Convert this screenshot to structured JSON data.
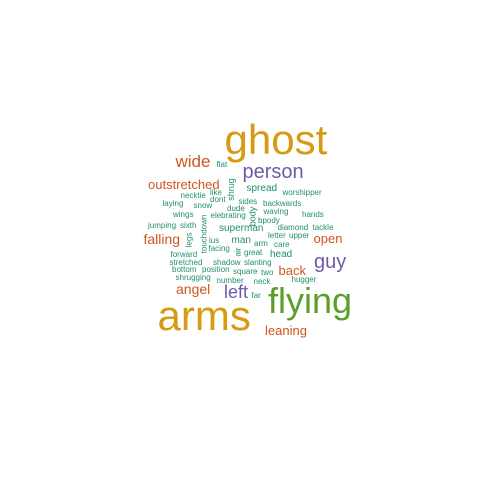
{
  "colors": {
    "orange": "#d79a12",
    "green": "#5a9e2c",
    "purple": "#6f5aaa",
    "red": "#d15520",
    "teal": "#21906b"
  },
  "words": [
    {
      "text": "ghost",
      "color": "orange",
      "rot": 0
    },
    {
      "text": "arms",
      "color": "orange",
      "rot": 0
    },
    {
      "text": "flying",
      "color": "green",
      "rot": 0
    },
    {
      "text": "person",
      "color": "purple",
      "rot": 0
    },
    {
      "text": "guy",
      "color": "purple",
      "rot": 0
    },
    {
      "text": "left",
      "color": "purple",
      "rot": 0
    },
    {
      "text": "wide",
      "color": "red",
      "rot": 0
    },
    {
      "text": "outstretched",
      "color": "red",
      "rot": 0
    },
    {
      "text": "falling",
      "color": "red",
      "rot": 0
    },
    {
      "text": "angel",
      "color": "red",
      "rot": 0
    },
    {
      "text": "back",
      "color": "red",
      "rot": 0
    },
    {
      "text": "open",
      "color": "red",
      "rot": 0
    },
    {
      "text": "leaning",
      "color": "red",
      "rot": 0
    },
    {
      "text": "spread",
      "color": "teal",
      "rot": 0
    },
    {
      "text": "superman",
      "color": "teal",
      "rot": 0
    },
    {
      "text": "man",
      "color": "teal",
      "rot": 0
    },
    {
      "text": "head",
      "color": "teal",
      "rot": 0
    },
    {
      "text": "flat",
      "color": "teal",
      "rot": 0
    },
    {
      "text": "like",
      "color": "teal",
      "rot": 0
    },
    {
      "text": "dont",
      "color": "teal",
      "rot": 0
    },
    {
      "text": "shrug",
      "color": "teal",
      "rot": 90
    },
    {
      "text": "necktie",
      "color": "teal",
      "rot": 0
    },
    {
      "text": "sides",
      "color": "teal",
      "rot": 0
    },
    {
      "text": "worshipper",
      "color": "teal",
      "rot": 0
    },
    {
      "text": "laying",
      "color": "teal",
      "rot": 0
    },
    {
      "text": "snow",
      "color": "teal",
      "rot": 0
    },
    {
      "text": "dude",
      "color": "teal",
      "rot": 0
    },
    {
      "text": "backwards",
      "color": "teal",
      "rot": 0
    },
    {
      "text": "wings",
      "color": "teal",
      "rot": 0
    },
    {
      "text": "elebrating",
      "color": "teal",
      "rot": 0
    },
    {
      "text": "waving",
      "color": "teal",
      "rot": 0
    },
    {
      "text": "hands",
      "color": "teal",
      "rot": 0
    },
    {
      "text": "body",
      "color": "teal",
      "rot": 90
    },
    {
      "text": "bpody",
      "color": "teal",
      "rot": 0
    },
    {
      "text": "jumping",
      "color": "teal",
      "rot": 0
    },
    {
      "text": "sixth",
      "color": "teal",
      "rot": 0
    },
    {
      "text": "touchdown",
      "color": "teal",
      "rot": 90
    },
    {
      "text": "diamond",
      "color": "teal",
      "rot": 0
    },
    {
      "text": "tackle",
      "color": "teal",
      "rot": 0
    },
    {
      "text": "letter",
      "color": "teal",
      "rot": 0
    },
    {
      "text": "upper",
      "color": "teal",
      "rot": 0
    },
    {
      "text": "legs",
      "color": "teal",
      "rot": 90
    },
    {
      "text": "ius",
      "color": "teal",
      "rot": 0
    },
    {
      "text": "air",
      "color": "teal",
      "rot": 90
    },
    {
      "text": "arm",
      "color": "teal",
      "rot": 0
    },
    {
      "text": "care",
      "color": "teal",
      "rot": 0
    },
    {
      "text": "facing",
      "color": "teal",
      "rot": 0
    },
    {
      "text": "great",
      "color": "teal",
      "rot": 0
    },
    {
      "text": "forward",
      "color": "teal",
      "rot": 0
    },
    {
      "text": "stretched",
      "color": "teal",
      "rot": 0
    },
    {
      "text": "shadow",
      "color": "teal",
      "rot": 0
    },
    {
      "text": "slanting",
      "color": "teal",
      "rot": 0
    },
    {
      "text": "bottom",
      "color": "teal",
      "rot": 0
    },
    {
      "text": "position",
      "color": "teal",
      "rot": 0
    },
    {
      "text": "square",
      "color": "teal",
      "rot": 0
    },
    {
      "text": "two",
      "color": "teal",
      "rot": 0
    },
    {
      "text": "shrugging",
      "color": "teal",
      "rot": 0
    },
    {
      "text": "number",
      "color": "teal",
      "rot": 0
    },
    {
      "text": "neck",
      "color": "teal",
      "rot": 0
    },
    {
      "text": "hugger",
      "color": "teal",
      "rot": 0
    },
    {
      "text": "far",
      "color": "teal",
      "rot": 0
    }
  ]
}
